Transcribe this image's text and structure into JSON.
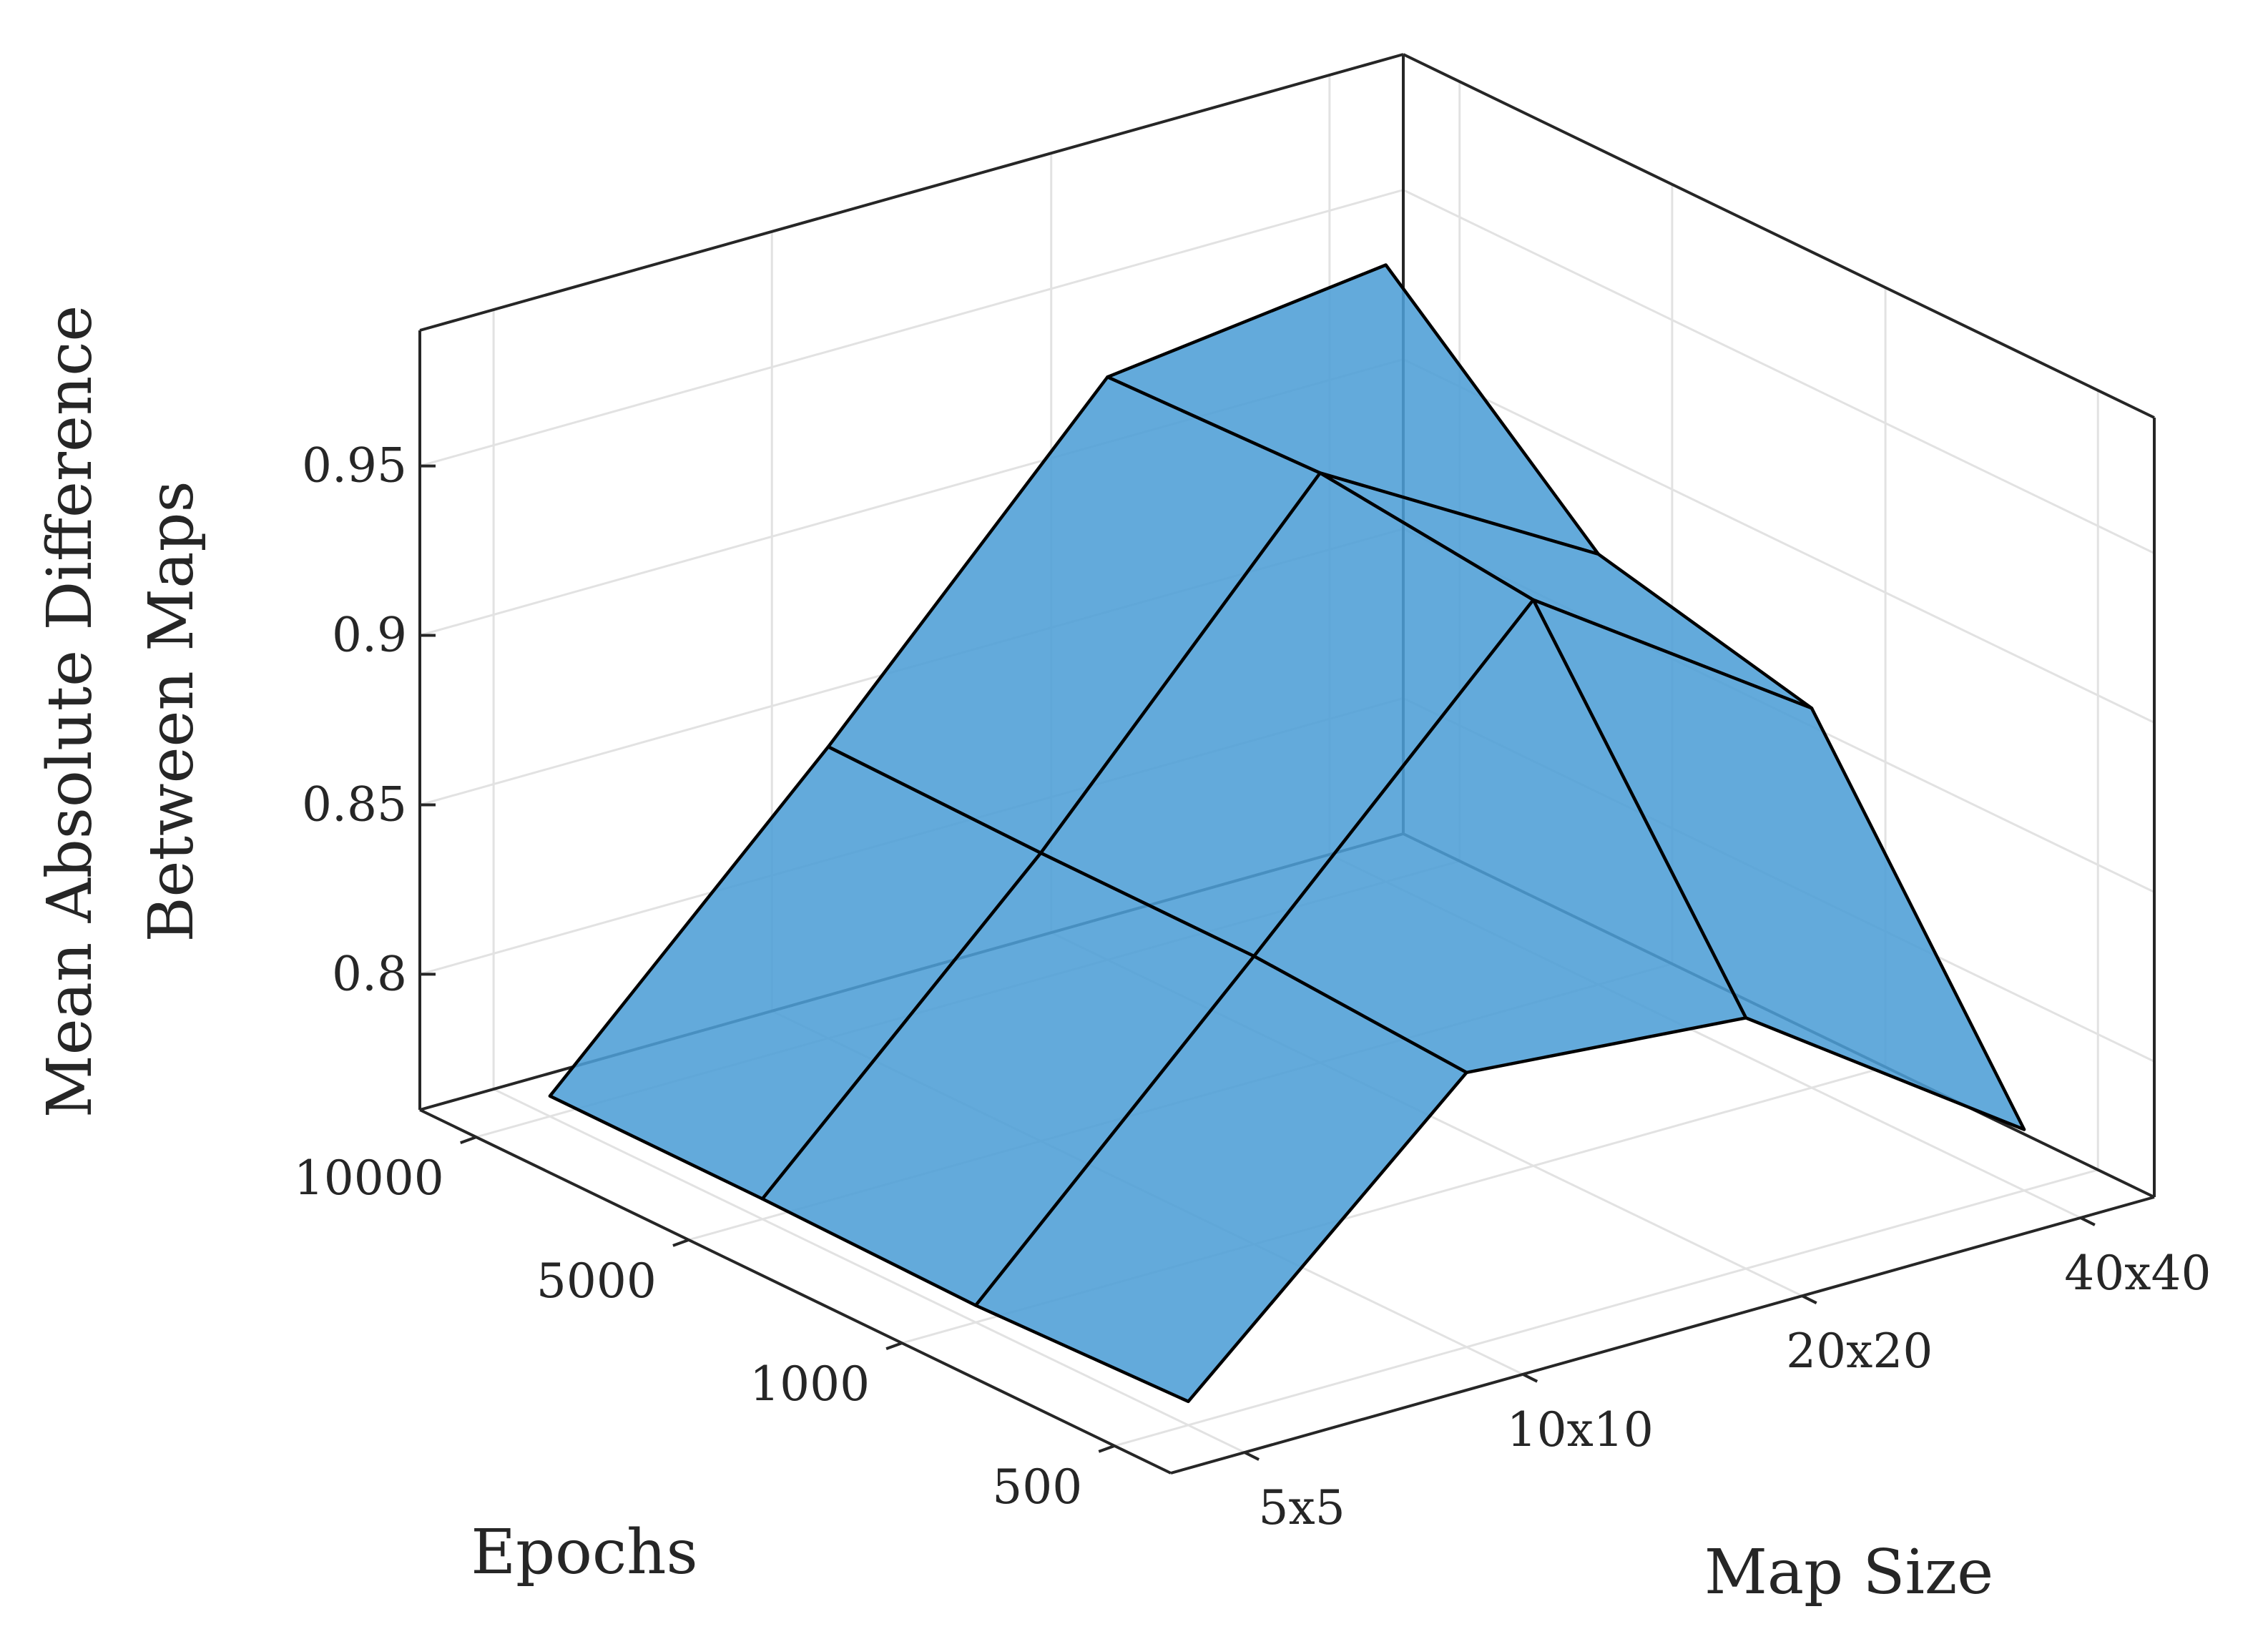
{
  "chart_data": {
    "type": "surface",
    "zlabel_lines": [
      "Mean Absolute Difference",
      "Between Maps"
    ],
    "xlabel": "Map Size",
    "ylabel": "Epochs",
    "map_size_ticks": [
      "5x5",
      "10x10",
      "20x20",
      "40x40"
    ],
    "epoch_ticks": [
      "10000",
      "5000",
      "1000",
      "500"
    ],
    "z_ticks": [
      "0.8",
      "0.85",
      "0.9",
      "0.95"
    ],
    "z_tick_values": [
      0.8,
      0.85,
      0.9,
      0.95
    ],
    "zlim": [
      0.76,
      0.99
    ],
    "z_values_rows_by_epoch": {
      "order_epochs": [
        "10000",
        "5000",
        "1000",
        "500"
      ],
      "order_map_size": [
        "5x5",
        "10x10",
        "20x20",
        "40x40"
      ],
      "rows": [
        [
          0.766,
          0.846,
          0.932,
          0.942
        ],
        [
          0.766,
          0.845,
          0.934,
          0.887
        ],
        [
          0.765,
          0.845,
          0.927,
          0.872
        ],
        [
          0.767,
          0.841,
          0.834,
          0.778
        ]
      ]
    },
    "grid": true,
    "face_color": "#4d9ed6",
    "edge_color": "#000000"
  }
}
